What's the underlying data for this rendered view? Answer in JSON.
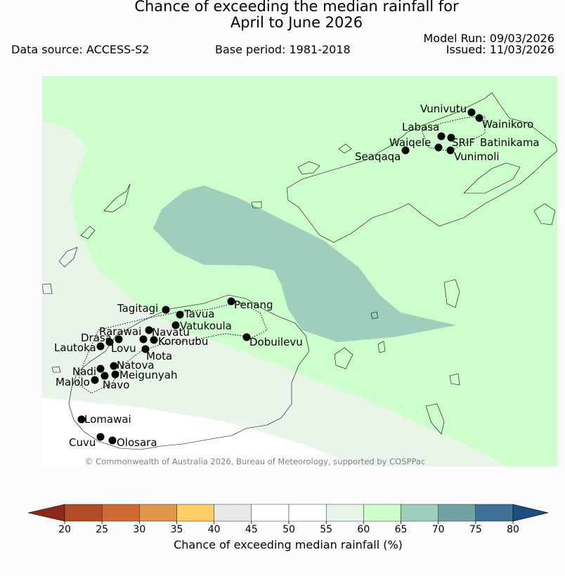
{
  "title_line1": "Chance of exceeding the median rainfall for",
  "title_line2": "April to June 2026",
  "data_source": "Data source: ACCESS-S2",
  "base_period": "Base period: 1981-2018",
  "model_run": "Model Run: 09/03/2026",
  "issued": "Issued: 11/03/2026",
  "copyright": "© Commonwealth of Australia 2026, Bureau of Meteorology, supported by COSPPac",
  "map": {
    "stations": [
      "Vunivutu",
      "Wainikoro",
      "Labasa",
      "Waiqele",
      "SRIF",
      "Batinikama",
      "Vunimoli",
      "Seaqaqa",
      "Tagitagi",
      "Tavua",
      "Penang",
      "Vatukoula",
      "Rarawai",
      "Navatu",
      "Koronubu",
      "Drasa",
      "Lautoka",
      "Lovu",
      "Mota",
      "Dobuilevu",
      "Natova",
      "Nadi",
      "Meigunyah",
      "Malolo",
      "Navo",
      "Lomawai",
      "Cuvu",
      "Olosara"
    ]
  },
  "colorbar": {
    "label": "Chance of exceeding median rainfall (%)",
    "ticks": [
      "20",
      "25",
      "30",
      "35",
      "40",
      "45",
      "50",
      "55",
      "60",
      "65",
      "70",
      "75",
      "80"
    ],
    "colors": [
      "#b24c28",
      "#cf6a35",
      "#e0964b",
      "#ffcc66",
      "#e8e8e6",
      "#ffffff",
      "#ffffff",
      "#eaf5ea",
      "#ccffcc",
      "#9ecfbc",
      "#6fa3a6",
      "#3e7296"
    ],
    "under_color": "#8b2a1a",
    "over_color": "#1a4f80"
  },
  "legend_colors": {
    "c55_60": "#eaf5ea",
    "c60_65": "#ccffcc",
    "c65_70": "#9ecfbc"
  }
}
